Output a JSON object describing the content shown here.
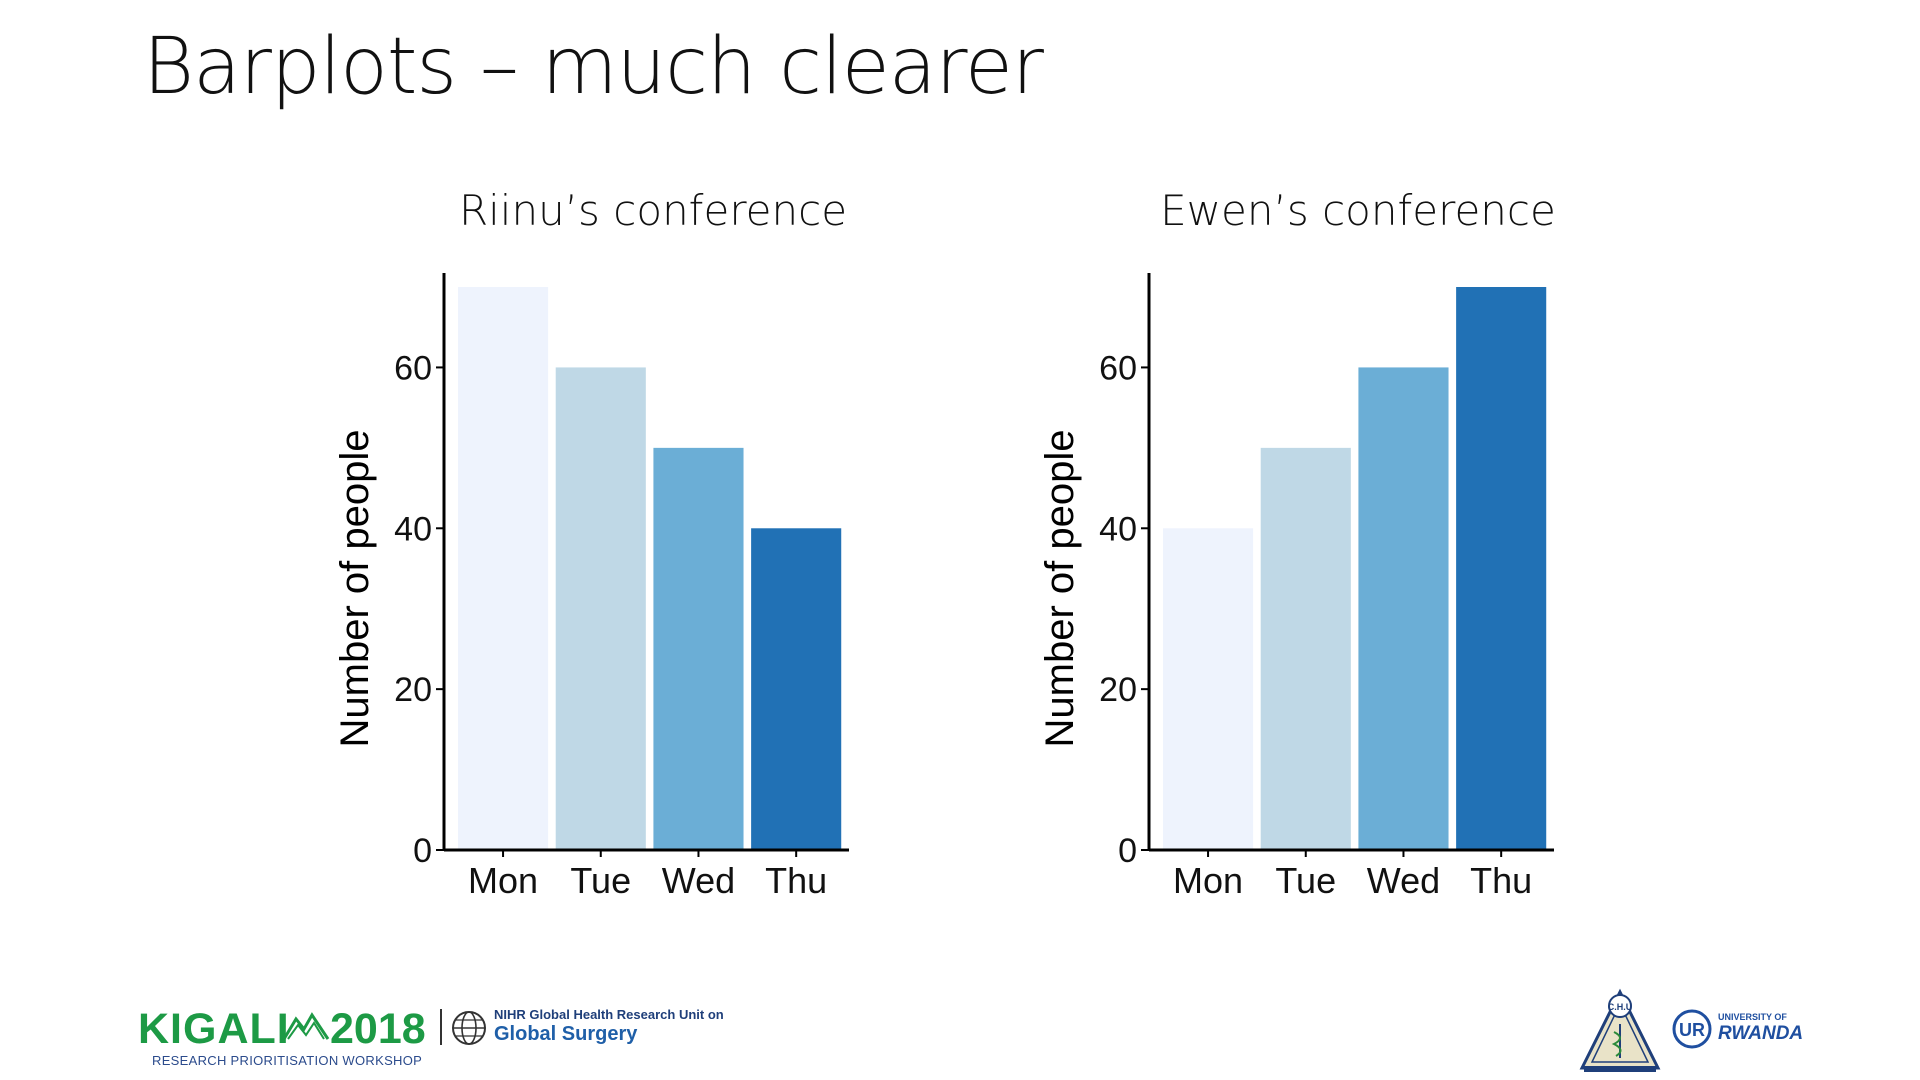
{
  "slide": {
    "title": "Barplots – much clearer"
  },
  "colors": [
    "#eef3fd",
    "#bfd8e6",
    "#6baed6",
    "#2171b5"
  ],
  "chart_data": [
    {
      "type": "bar",
      "title": "Riinu’s conference",
      "categories": [
        "Mon",
        "Tue",
        "Wed",
        "Thu"
      ],
      "values": [
        70,
        60,
        50,
        40
      ],
      "xlabel": "",
      "ylabel": "Number of people",
      "ylim": [
        0,
        70
      ],
      "yticks": [
        0,
        20,
        40,
        60
      ],
      "grid": false,
      "legend": "none"
    },
    {
      "type": "bar",
      "title": "Ewen’s conference",
      "categories": [
        "Mon",
        "Tue",
        "Wed",
        "Thu"
      ],
      "values": [
        40,
        50,
        60,
        70
      ],
      "xlabel": "",
      "ylabel": "Number of people",
      "ylim": [
        0,
        70
      ],
      "yticks": [
        0,
        20,
        40,
        60
      ],
      "grid": false,
      "legend": "none"
    }
  ],
  "footer": {
    "kigali_word": "KIGALI",
    "kigali_year": "2018",
    "kigali_subtitle": "RESEARCH PRIORITISATION WORKSHOP",
    "nihr_line1": "NIHR Global Health Research Unit on",
    "nihr_line2": "Global Surgery",
    "chu_logo_text": "C.H.U",
    "ur_top": "UNIVERSITY OF",
    "ur_bottom": "RWANDA"
  },
  "icons": [
    "mountains-icon",
    "globe-icon",
    "chu-logo-icon",
    "ur-logo-icon"
  ]
}
